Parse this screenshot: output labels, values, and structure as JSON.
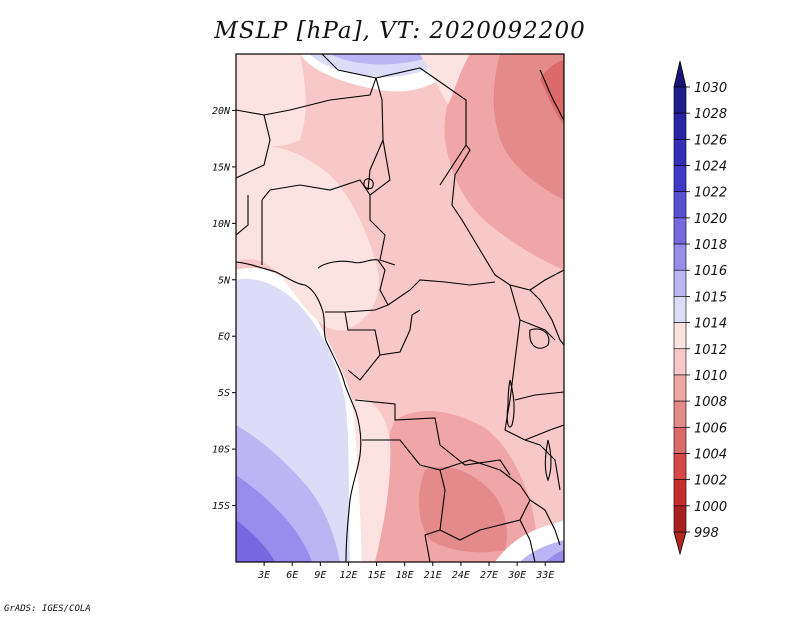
{
  "title": "MSLP [hPa], VT: 2020092200",
  "footer": "GrADS: IGES/COLA",
  "map": {
    "lon_range": [
      0,
      35
    ],
    "lat_range": [
      -20,
      25
    ],
    "lat_ticks": [
      {
        "value": 20,
        "label": "20N"
      },
      {
        "value": 15,
        "label": "15N"
      },
      {
        "value": 10,
        "label": "10N"
      },
      {
        "value": 5,
        "label": "5N"
      },
      {
        "value": 0,
        "label": "EQ"
      },
      {
        "value": -5,
        "label": "5S"
      },
      {
        "value": -10,
        "label": "10S"
      },
      {
        "value": -15,
        "label": "15S"
      }
    ],
    "lon_ticks": [
      {
        "value": 3,
        "label": "3E"
      },
      {
        "value": 6,
        "label": "6E"
      },
      {
        "value": 9,
        "label": "9E"
      },
      {
        "value": 12,
        "label": "12E"
      },
      {
        "value": 15,
        "label": "15E"
      },
      {
        "value": 18,
        "label": "18E"
      },
      {
        "value": 21,
        "label": "21E"
      },
      {
        "value": 24,
        "label": "24E"
      },
      {
        "value": 27,
        "label": "27E"
      },
      {
        "value": 30,
        "label": "30E"
      },
      {
        "value": 33,
        "label": "33E"
      }
    ]
  },
  "colorbar": {
    "units": "hPa",
    "levels": [
      {
        "label": "1030",
        "color": "#1e1e8c"
      },
      {
        "label": "1028",
        "color": "#2626a6"
      },
      {
        "label": "1026",
        "color": "#3030b8"
      },
      {
        "label": "1024",
        "color": "#3c3cc8"
      },
      {
        "label": "1022",
        "color": "#5a50d6"
      },
      {
        "label": "1020",
        "color": "#7868e0"
      },
      {
        "label": "1018",
        "color": "#9a8cec"
      },
      {
        "label": "1016",
        "color": "#bdb4f4"
      },
      {
        "label": "1015",
        "color": "#dcdcf8"
      },
      {
        "label": "1014",
        "color": "#ffffff"
      },
      {
        "label": "1012",
        "color": "#fde2e2"
      },
      {
        "label": "1010",
        "color": "#f8c8c8"
      },
      {
        "label": "1008",
        "color": "#f0a6a6"
      },
      {
        "label": "1006",
        "color": "#e48a8a"
      },
      {
        "label": "1004",
        "color": "#dc6a6a"
      },
      {
        "label": "1002",
        "color": "#d84848"
      },
      {
        "label": "1000",
        "color": "#c83030"
      },
      {
        "label": "998",
        "color": "#a82020"
      }
    ],
    "extend_top_color": "#1a1478",
    "extend_bottom_color": "#b0281e"
  }
}
